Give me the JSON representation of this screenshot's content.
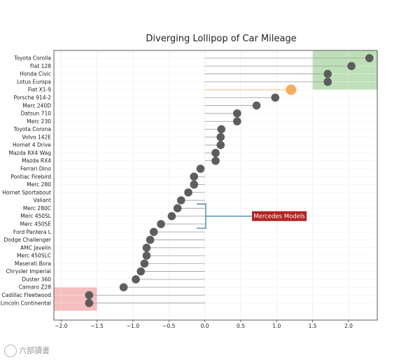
{
  "chart_data": {
    "type": "lollipop",
    "title": "Diverging Lollipop of Car Mileage",
    "xlabel": "",
    "ylabel": "",
    "xlim": [
      -2.1,
      2.4
    ],
    "xticks": [
      -2.0,
      -1.5,
      -1.0,
      -0.5,
      0.0,
      0.5,
      1.0,
      1.5,
      2.0
    ],
    "xtick_labels": [
      "−2.0",
      "−1.5",
      "−1.0",
      "−0.5",
      "0.0",
      "0.5",
      "1.0",
      "1.5",
      "2.0"
    ],
    "grid": true,
    "categories": [
      "Toyota Corolla",
      "Fiat 128",
      "Honda Civic",
      "Lotus Europa",
      "Fiat X1-9",
      "Porsche 914-2",
      "Merc 240D",
      "Datsun 710",
      "Merc 230",
      "Toyota Corona",
      "Volvo 142E",
      "Hornet 4 Drive",
      "Mazda RX4 Wag",
      "Mazda RX4",
      "Ferrari Dino",
      "Pontiac Firebird",
      "Merc 280",
      "Hornet Sportabout",
      "Valiant",
      "Merc 280C",
      "Merc 450SL",
      "Merc 450SE",
      "Ford Pantera L",
      "Dodge Challenger",
      "AMC Javelin",
      "Merc 450SLC",
      "Maserati Bora",
      "Chrysler Imperial",
      "Duster 360",
      "Camaro Z28",
      "Cadillac Fleetwood",
      "Lincoln Continental"
    ],
    "values": [
      2.29,
      2.04,
      1.71,
      1.71,
      1.2,
      0.98,
      0.72,
      0.45,
      0.45,
      0.23,
      0.22,
      0.22,
      0.15,
      0.15,
      -0.06,
      -0.15,
      -0.15,
      -0.23,
      -0.33,
      -0.38,
      -0.46,
      -0.61,
      -0.71,
      -0.76,
      -0.81,
      -0.81,
      -0.84,
      -0.89,
      -0.96,
      -1.13,
      -1.61,
      -1.61
    ],
    "highlight": {
      "category": "Fiat X1-9",
      "color": "#f5a54a"
    },
    "point_color": "#555555",
    "stem_color": "#9a9a9a",
    "annotation": {
      "text": "Mercedes Models",
      "bracket_color": "#3a7fa8",
      "box_color": "#b22222",
      "text_color": "#ffffff",
      "rows_covered": [
        "Merc 280C",
        "Merc 450SL",
        "Merc 450SE"
      ]
    },
    "regions": [
      {
        "name": "top-highlight",
        "color": "#a8d5a0",
        "x_from": 1.5,
        "x_to": 2.4,
        "rows_from": "Toyota Corolla",
        "rows_to": "Lotus Europa"
      },
      {
        "name": "bottom-highlight",
        "color": "#f2a8a8",
        "x_from": -2.1,
        "x_to": -1.5,
        "rows_from": "Cadillac Fleetwood",
        "rows_to": "Lincoln Continental"
      }
    ]
  },
  "watermark": "六部讀書"
}
